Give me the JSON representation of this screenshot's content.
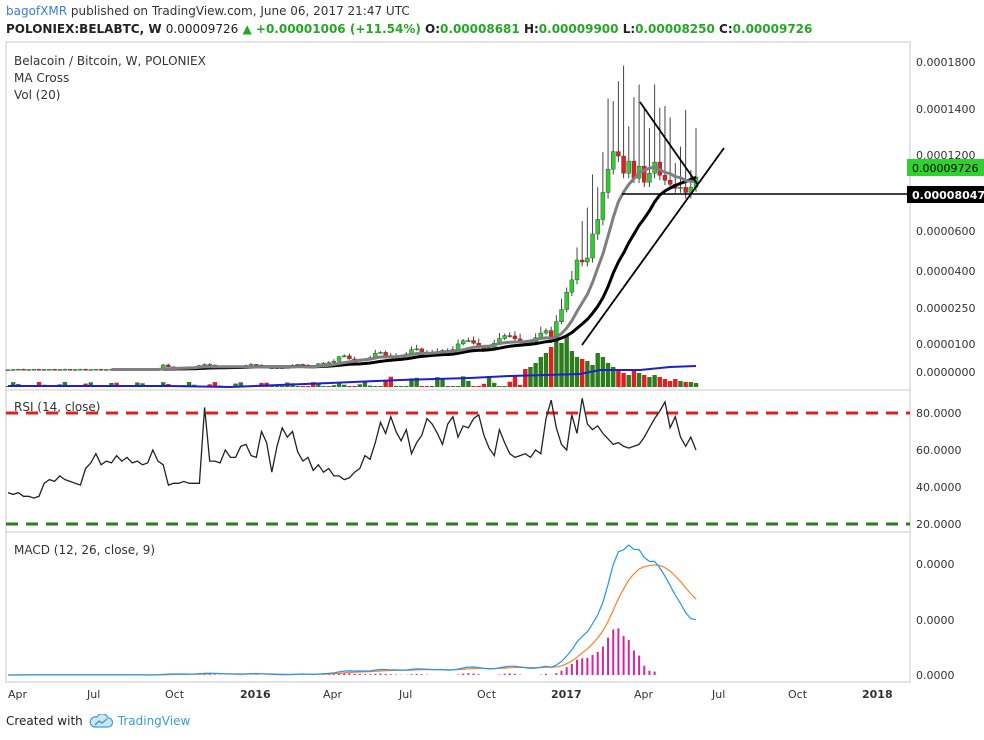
{
  "header": {
    "user": "bagofXMR",
    "published": "published on TradingView.com, June 06, 2017 21:47 UTC",
    "symbol": "POLONIEX:BELABTC, W",
    "last": "0.00009726",
    "change": "+0.00001006 (+11.54%)",
    "o_label": "O:",
    "o": "0.00008681",
    "h_label": "H:",
    "h": "0.00009900",
    "l_label": "L:",
    "l": "0.00008250",
    "c_label": "C:",
    "c": "0.00009726"
  },
  "legend": {
    "title": "Belacoin / Bitcoin, W, POLONIEX",
    "ma": "MA Cross",
    "vol": "Vol (20)",
    "rsi": "RSI (14, close)",
    "macd": "MACD (12, 26, close, 9)"
  },
  "price_labels": {
    "last": "0.00009726",
    "hline": "0.00008047",
    "last_color": "#2ed12e",
    "hline_color": "#000000"
  },
  "footer": {
    "created": "Created with",
    "brand": "TradingView"
  },
  "chart_data": {
    "type": "candlestick",
    "title": "Belacoin / Bitcoin, W, POLONIEX",
    "x_axis_ticks": [
      "Apr",
      "Jul",
      "Oct",
      "2016",
      "Apr",
      "Jul",
      "Oct",
      "2017",
      "Apr",
      "Jul",
      "Oct",
      "2018"
    ],
    "y_axis_ticks": [
      "0.0001800",
      "0.0001400",
      "0.0001200",
      "0.0000600",
      "0.0000400",
      "0.0000250",
      "0.0000100",
      "0.0000000"
    ],
    "rsi_ticks": [
      "80.0000",
      "60.0000",
      "40.0000",
      "20.0000"
    ],
    "macd_ticks": [
      "0.0000",
      "0.0000",
      "0.0000"
    ],
    "last_close": 9.726e-05,
    "horizontal_level": 8.047e-05,
    "rsi_bands": [
      80,
      20
    ],
    "colors": {
      "up": "#2ecc2e",
      "down": "#e02020",
      "vol_up": "#2d7d1f",
      "vol_down": "#e02020",
      "ma_fast": "#7f7f7f",
      "ma_slow": "#000000",
      "vol_ma": "#1f1fd0",
      "rsi": "#222222",
      "rsi_high": "#e02020",
      "rsi_low": "#2d7d1f",
      "macd": "#2196f3",
      "signal": "#ff7f27",
      "hist": "#d6249a"
    },
    "rsi_values": [
      37,
      36,
      37,
      35,
      35,
      34,
      35,
      42,
      44,
      43,
      46,
      44,
      43,
      42,
      41,
      50,
      53,
      58,
      52,
      54,
      53,
      57,
      54,
      56,
      53,
      54,
      52,
      53,
      60,
      54,
      52,
      41,
      42,
      42,
      43,
      42,
      42,
      42,
      83,
      54,
      54,
      53,
      60,
      56,
      56,
      62,
      63,
      57,
      56,
      70,
      64,
      48,
      62,
      72,
      67,
      70,
      59,
      54,
      56,
      49,
      52,
      48,
      50,
      46,
      46,
      44,
      45,
      48,
      50,
      57,
      55,
      64,
      75,
      69,
      78,
      70,
      65,
      71,
      58,
      64,
      68,
      77,
      74,
      69,
      63,
      74,
      78,
      67,
      73,
      72,
      77,
      79,
      68,
      61,
      57,
      71,
      64,
      58,
      56,
      57,
      58,
      56,
      60,
      58,
      77,
      87,
      72,
      63,
      60,
      79,
      69,
      88,
      74,
      71,
      73,
      69,
      66,
      63,
      64,
      62,
      61,
      62,
      63,
      67,
      72,
      77,
      81,
      86,
      72,
      78,
      67,
      62,
      67,
      60
    ]
  }
}
